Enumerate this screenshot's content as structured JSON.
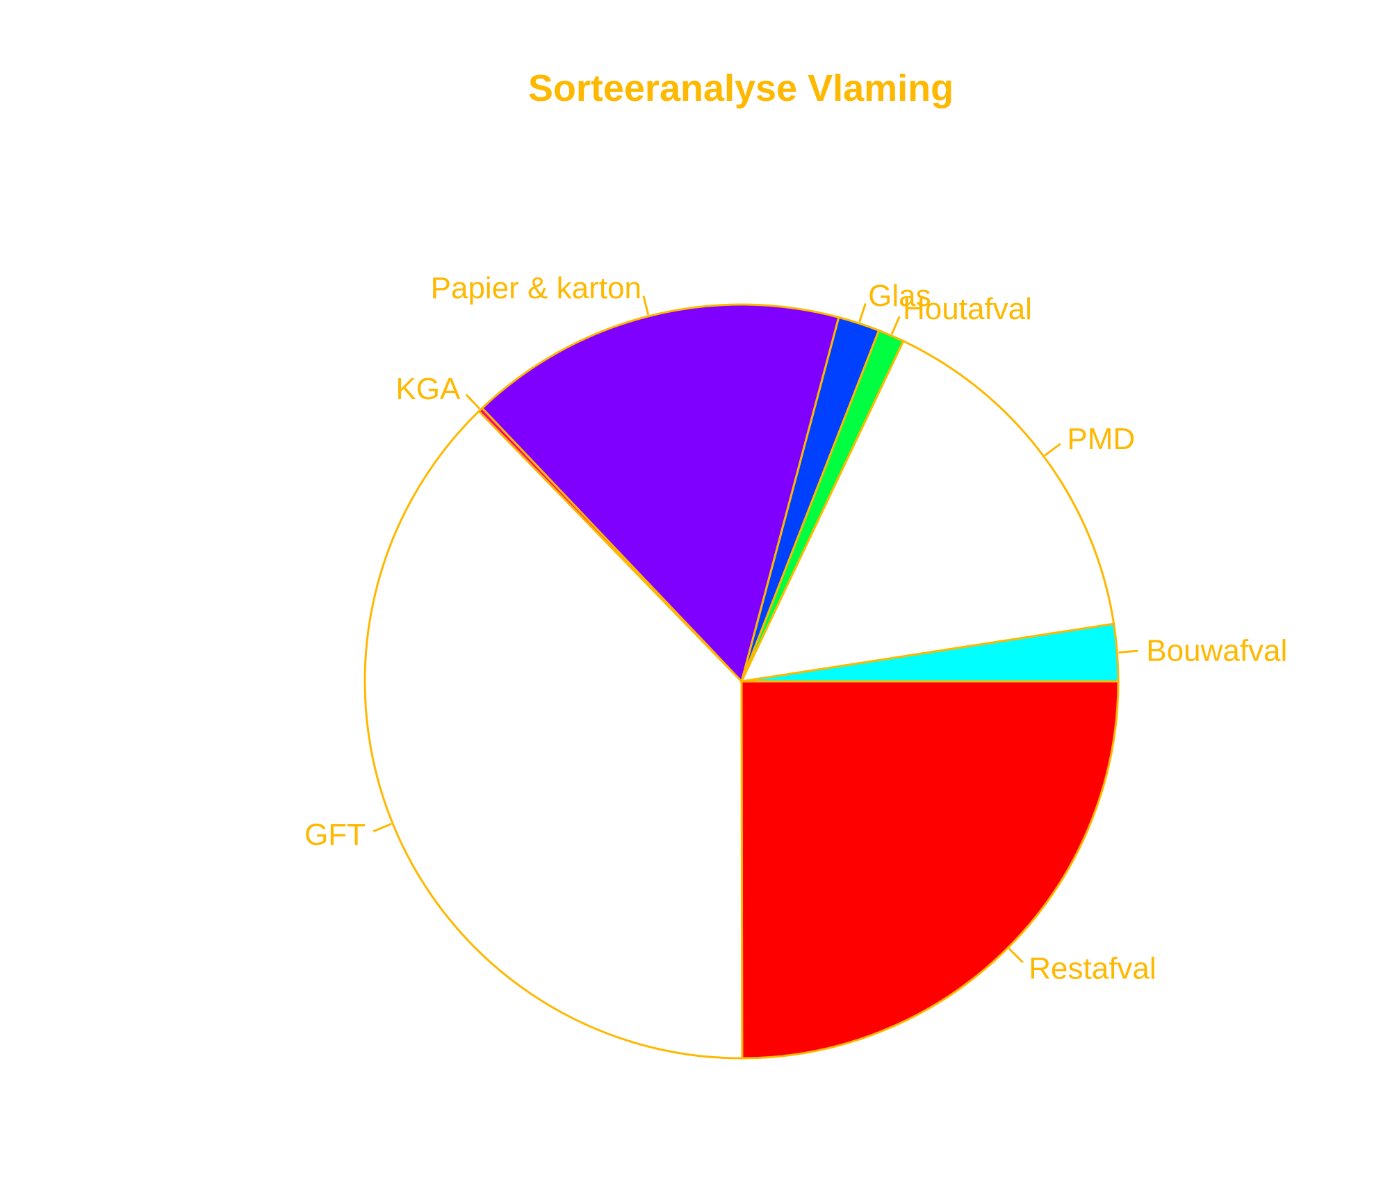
{
  "chart_data": {
    "type": "pie",
    "title": "Sorteeranalyse Vlaming",
    "categories": [
      "Restafval",
      "GFT",
      "KGA",
      "Papier & karton",
      "Glas",
      "Houtafval",
      "PMD",
      "Bouwafval"
    ],
    "values": [
      26.6,
      40.2,
      0.2,
      17.3,
      1.9,
      1.2,
      16.5,
      2.6
    ],
    "colors": [
      "#FF0000",
      "#FFFFFF",
      "#FF0080",
      "#8000FF",
      "#0040FF",
      "#00FF40",
      "#FFFFFF",
      "#00FFFF"
    ],
    "order": "clockwise from 3 o'clock",
    "legend": "none (labels outside slices)"
  },
  "theme": {
    "accent": "#FFB800",
    "background": "#FFFFFF"
  }
}
